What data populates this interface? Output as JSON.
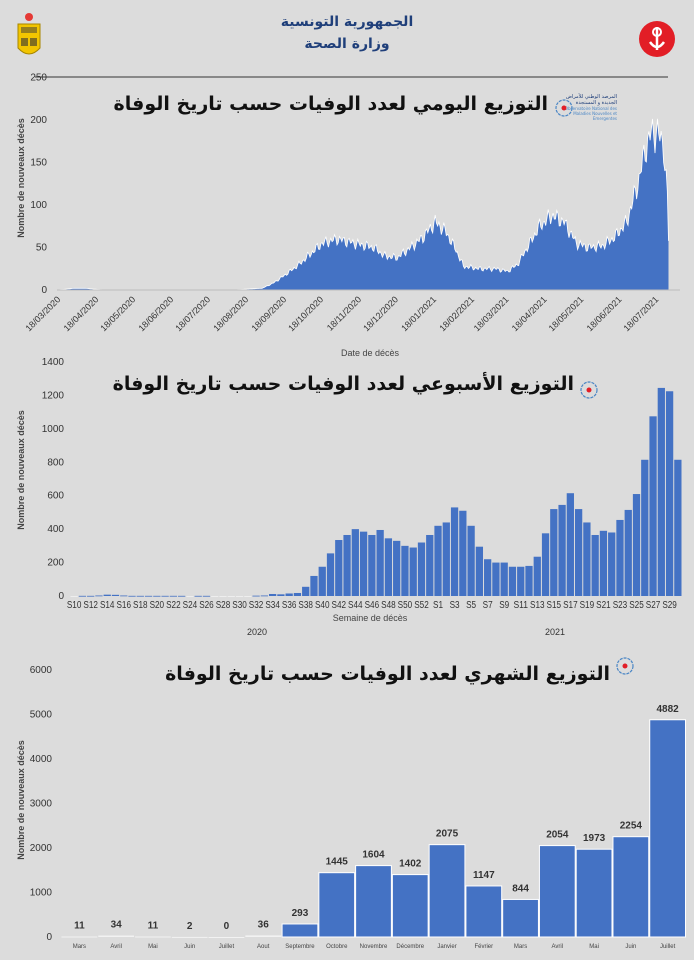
{
  "header": {
    "line1": "الجمهورية التونسية",
    "line2": "وزارة الصحة",
    "left_logo": "tunisia-coat-of-arms",
    "right_logo": "ministry-of-health-emblem"
  },
  "observatory_logo": {
    "arabic": "المرصد الوطني للأمراض الجديدة و المستجدة",
    "french": "Observatoire National des Maladies Nouvelles et Emergentes"
  },
  "colors": {
    "bar": "#4472c4",
    "background": "#dcdcdc"
  },
  "chart_data": [
    {
      "type": "area",
      "title": "التوزيع اليومي لعدد الوفيات حسب تاريخ الوفاة",
      "xlabel": "Date de décès",
      "ylabel": "Nombre de nouveaux décès",
      "ylim": [
        0,
        250
      ],
      "yticks": [
        "0",
        "50",
        "100",
        "150",
        "200",
        "250"
      ],
      "xticks": [
        "18/03/2020",
        "18/04/2020",
        "18/05/2020",
        "18/06/2020",
        "18/07/2020",
        "18/08/2020",
        "18/09/2020",
        "18/10/2020",
        "18/11/2020",
        "18/12/2020",
        "18/01/2021",
        "18/02/2021",
        "18/03/2021",
        "18/04/2021",
        "18/05/2021",
        "18/06/2021",
        "18/07/2021"
      ],
      "points": [
        [
          "2020-03-18",
          0
        ],
        [
          "2020-04-01",
          2
        ],
        [
          "2020-04-10",
          2
        ],
        [
          "2020-04-25",
          0
        ],
        [
          "2020-08-10",
          0
        ],
        [
          "2020-08-18",
          1
        ],
        [
          "2020-09-01",
          2
        ],
        [
          "2020-09-10",
          8
        ],
        [
          "2020-09-20",
          18
        ],
        [
          "2020-10-01",
          30
        ],
        [
          "2020-10-10",
          42
        ],
        [
          "2020-10-20",
          55
        ],
        [
          "2020-11-01",
          60
        ],
        [
          "2020-11-15",
          55
        ],
        [
          "2020-12-01",
          50
        ],
        [
          "2020-12-10",
          40
        ],
        [
          "2020-12-20",
          38
        ],
        [
          "2020-12-31",
          50
        ],
        [
          "2021-01-10",
          62
        ],
        [
          "2021-01-20",
          80
        ],
        [
          "2021-01-28",
          70
        ],
        [
          "2021-02-05",
          50
        ],
        [
          "2021-02-12",
          28
        ],
        [
          "2021-02-25",
          25
        ],
        [
          "2021-03-10",
          25
        ],
        [
          "2021-03-20",
          22
        ],
        [
          "2021-03-28",
          30
        ],
        [
          "2021-04-05",
          50
        ],
        [
          "2021-04-15",
          75
        ],
        [
          "2021-04-25",
          88
        ],
        [
          "2021-05-05",
          80
        ],
        [
          "2021-05-15",
          55
        ],
        [
          "2021-05-25",
          50
        ],
        [
          "2021-06-05",
          52
        ],
        [
          "2021-06-15",
          62
        ],
        [
          "2021-06-25",
          80
        ],
        [
          "2021-07-05",
          130
        ],
        [
          "2021-07-10",
          165
        ],
        [
          "2021-07-15",
          185
        ],
        [
          "2021-07-20",
          185
        ],
        [
          "2021-07-25",
          170
        ],
        [
          "2021-07-28",
          110
        ],
        [
          "2021-07-29",
          60
        ]
      ]
    },
    {
      "type": "bar",
      "title": "التوزيع الأسبوعي لعدد الوفيات حسب تاريخ الوفاة",
      "xlabel": "Semaine de décès",
      "ylabel": "Nombre de nouveaux décès",
      "ylim": [
        0,
        1400
      ],
      "yticks": [
        "0",
        "200",
        "400",
        "600",
        "800",
        "1000",
        "1200",
        "1400"
      ],
      "years": [
        "2020",
        "2021"
      ],
      "categories": [
        "S10",
        "S11",
        "S12",
        "S13",
        "S14",
        "S15",
        "S16",
        "S17",
        "S18",
        "S19",
        "S20",
        "S21",
        "S22",
        "S23",
        "S24",
        "S25",
        "S26",
        "S27",
        "S28",
        "S29",
        "S30",
        "S31",
        "S32",
        "S33",
        "S34",
        "S35",
        "S36",
        "S37",
        "S38",
        "S39",
        "S40",
        "S41",
        "S42",
        "S43",
        "S44",
        "S45",
        "S46",
        "S47",
        "S48",
        "S49",
        "S50",
        "S51",
        "S52",
        "S53",
        "S1",
        "S2",
        "S3",
        "S4",
        "S5",
        "S6",
        "S7",
        "S8",
        "S9",
        "S10",
        "S11",
        "S12",
        "S13",
        "S14",
        "S15",
        "S16",
        "S17",
        "S18",
        "S19",
        "S20",
        "S21",
        "S22",
        "S23",
        "S24",
        "S25",
        "S26",
        "S27",
        "S28",
        "S29",
        "S30"
      ],
      "shown_labels": [
        "S10",
        "S12",
        "S14",
        "S16",
        "S18",
        "S20",
        "S22",
        "S24",
        "S26",
        "S28",
        "S30",
        "S32",
        "S34",
        "S36",
        "S38",
        "S40",
        "S42",
        "S44",
        "S46",
        "S48",
        "S50",
        "S52",
        "S1",
        "S3",
        "S5",
        "S7",
        "S9",
        "S11",
        "S13",
        "S15",
        "S17",
        "S19",
        "S21",
        "S23",
        "S25",
        "S27",
        "S29"
      ],
      "values": [
        0,
        1,
        1,
        3,
        8,
        7,
        3,
        1,
        1,
        1,
        1,
        1,
        1,
        1,
        0,
        1,
        1,
        0,
        0,
        0,
        0,
        0,
        2,
        3,
        12,
        10,
        15,
        18,
        55,
        120,
        175,
        255,
        335,
        365,
        400,
        385,
        365,
        395,
        345,
        330,
        300,
        290,
        320,
        365,
        420,
        440,
        530,
        510,
        420,
        295,
        220,
        200,
        200,
        175,
        175,
        180,
        235,
        375,
        520,
        545,
        615,
        520,
        440,
        365,
        390,
        380,
        455,
        515,
        610,
        815,
        1075,
        1245,
        1225,
        815
      ]
    },
    {
      "type": "bar",
      "title": "التوزيع الشهري لعدد الوفيات حسب تاريخ الوفاة",
      "ylabel": "Nombre de nouveaux décès",
      "ylim": [
        0,
        6000
      ],
      "yticks": [
        "0",
        "1000",
        "2000",
        "3000",
        "4000",
        "5000",
        "6000"
      ],
      "categories": [
        "Mars",
        "Avril",
        "Mai",
        "Juin",
        "Juillet",
        "Aout",
        "Septembre",
        "Octobre",
        "Novembre",
        "Décembre",
        "Janvier",
        "Février",
        "Mars",
        "Avril",
        "Mai",
        "Juin",
        "Juillet"
      ],
      "values": [
        11,
        34,
        11,
        2,
        0,
        36,
        293,
        1445,
        1604,
        1402,
        2075,
        1147,
        844,
        2054,
        1973,
        2254,
        4882
      ],
      "labels": [
        "11",
        "34",
        "11",
        "2",
        "0",
        "36",
        "293",
        "1445",
        "1604",
        "1402",
        "2075",
        "1147",
        "844",
        "2054",
        "1973",
        "2254",
        "4882"
      ]
    }
  ]
}
